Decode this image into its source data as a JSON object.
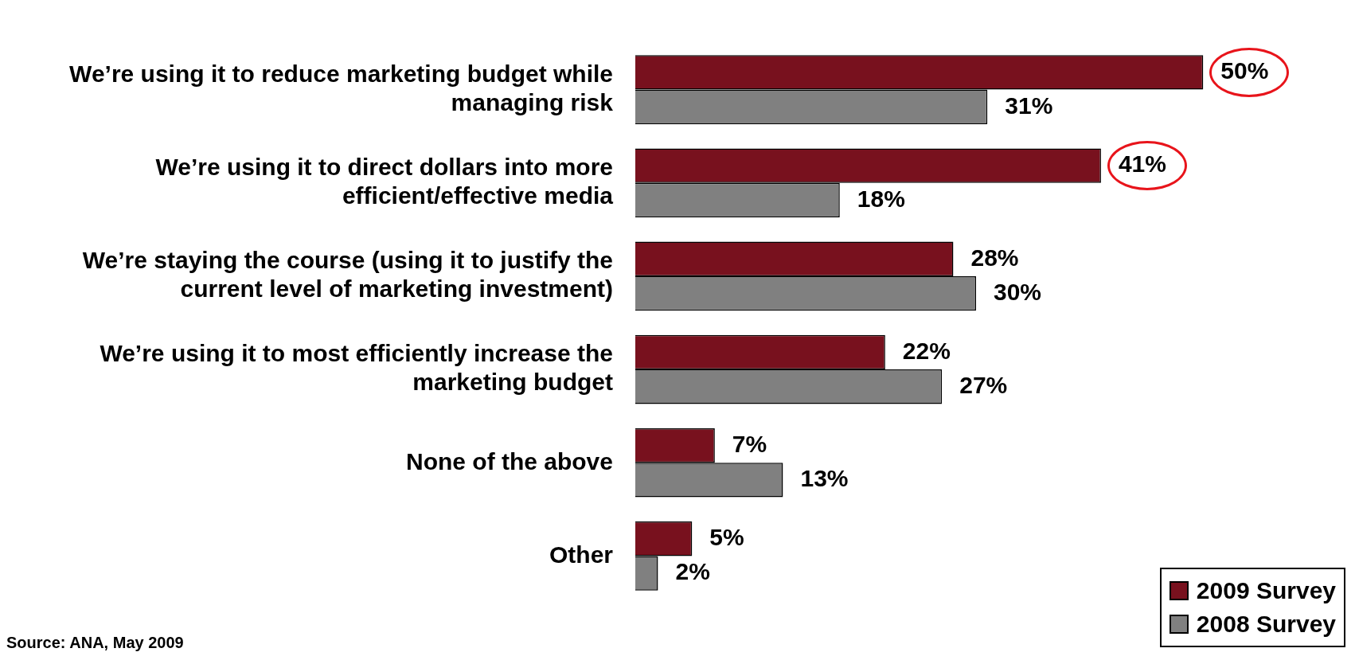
{
  "chart_data": {
    "type": "bar",
    "orientation": "horizontal",
    "categories": [
      "We’re using it to reduce marketing budget while managing risk",
      "We’re using it to direct dollars into more efficient/effective media",
      "We’re staying the course (using it to justify the current level of marketing investment)",
      "We’re using it to most efficiently increase the marketing budget",
      "None of the above",
      "Other"
    ],
    "series": [
      {
        "name": "2009 Survey",
        "color": "#78111e",
        "values": [
          50,
          41,
          28,
          22,
          7,
          5
        ],
        "value_labels": [
          "50%",
          "41%",
          "28%",
          "22%",
          "7%",
          "5%"
        ]
      },
      {
        "name": "2008 Survey",
        "color": "#808080",
        "values": [
          31,
          18,
          30,
          27,
          13,
          2
        ],
        "value_labels": [
          "31%",
          "18%",
          "30%",
          "27%",
          "13%",
          "2%"
        ]
      }
    ],
    "legend": "bottom right",
    "grid": false,
    "annotations": [
      "Source:  ANA, May 2009"
    ]
  }
}
